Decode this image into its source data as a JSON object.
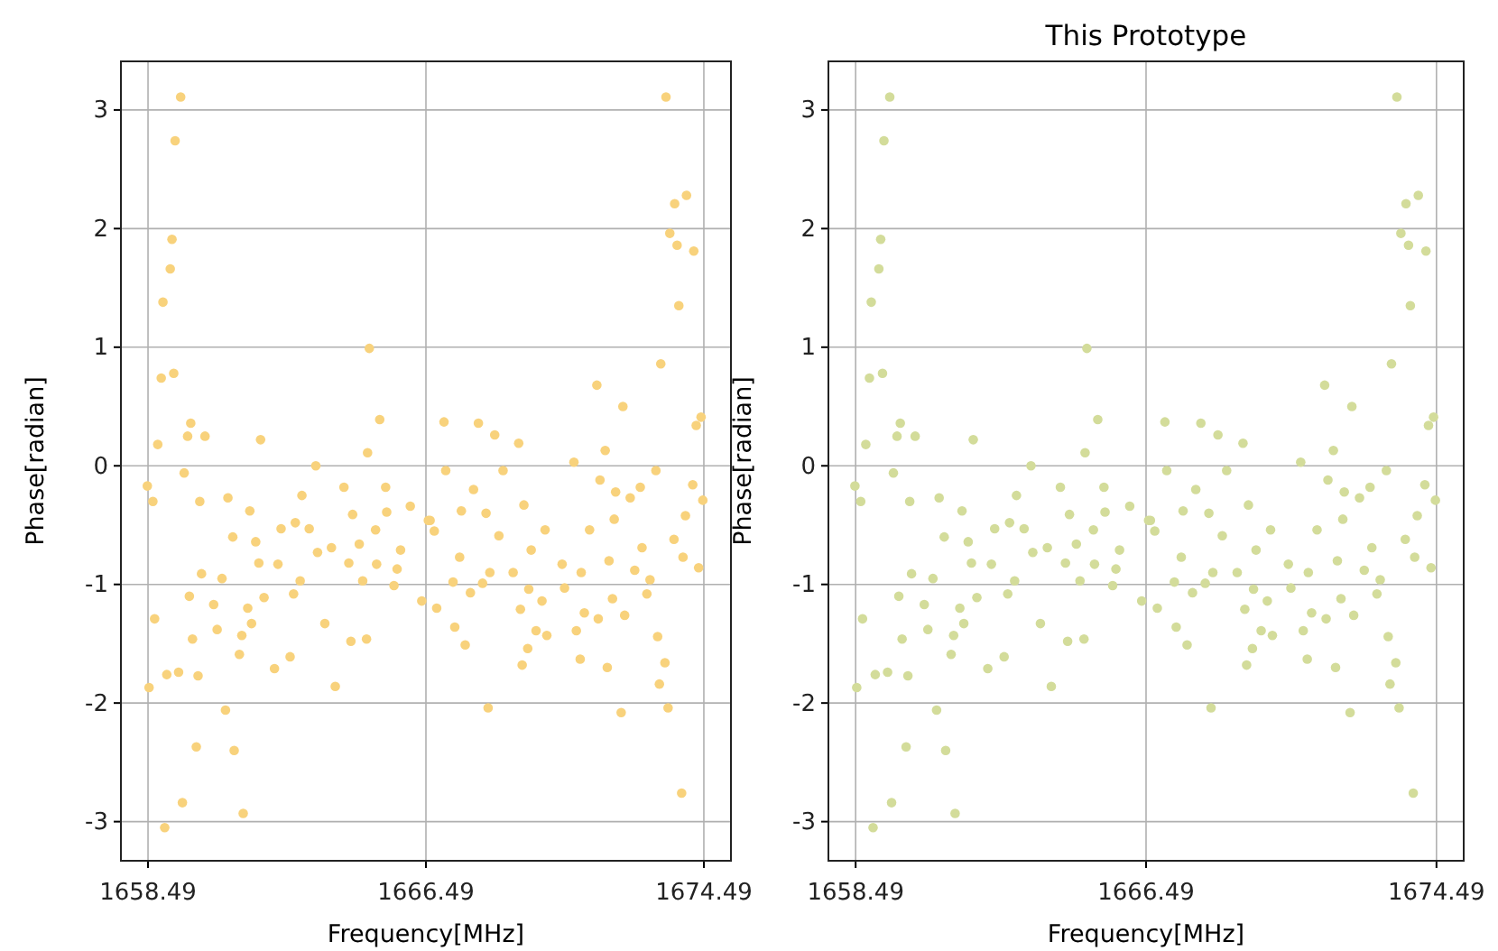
{
  "chart_data": [
    {
      "type": "scatter",
      "xlabel": "Frequency[MHz]",
      "ylabel": "Phase[radian]",
      "xlim": [
        1657.71,
        1675.27
      ],
      "ylim": [
        -3.33,
        3.41
      ],
      "xticks": [
        1658.49,
        1666.49,
        1674.49
      ],
      "yticks": [
        -3,
        -2,
        -1,
        0,
        1,
        2,
        3
      ],
      "grid": true,
      "marker": "circle",
      "series": [
        {
          "color": "#f8d27c",
          "x": [
            1659.43,
            1659.27,
            1659.18,
            1659.13,
            1658.92,
            1658.87,
            1659.23,
            1658.77,
            1659.72,
            1659.63,
            1660.13,
            1661.73,
            1659.53,
            1658.47,
            1658.63,
            1659.98,
            1660.79,
            1661.42,
            1663.32,
            1662.92,
            1664.13,
            1664.38,
            1660.93,
            1661.59,
            1662.32,
            1662.73,
            1663.13,
            1663.37,
            1663.77,
            1664.57,
            1661.68,
            1662.23,
            1660.03,
            1660.62,
            1662.87,
            1664.27,
            1664.67,
            1659.68,
            1660.38,
            1661.83,
            1662.68,
            1661.36,
            1658.68,
            1661.47,
            1663.58,
            1659.77,
            1660.48,
            1661.19,
            1664.33,
            1664.78,
            1661.12,
            1662.13,
            1662.58,
            1658.52,
            1659.03,
            1659.37,
            1659.93,
            1663.88,
            1660.72,
            1659.88,
            1660.97,
            1659.48,
            1658.97,
            1661.23,
            1664.86,
            1665.16,
            1664.81,
            1665.33,
            1666.04,
            1665.36,
            1665.04,
            1665.76,
            1665.07,
            1665.66,
            1665.57,
            1666.37,
            1666.56,
            1673.4,
            1673.65,
            1673.99,
            1673.51,
            1673.72,
            1674.2,
            1673.77,
            1673.25,
            1671.41,
            1672.16,
            1674.41,
            1674.27,
            1667.01,
            1668.0,
            1668.47,
            1669.16,
            1671.65,
            1670.75,
            1667.06,
            1668.71,
            1673.11,
            1671.5,
            1671.95,
            1672.66,
            1674.17,
            1674.46,
            1667.86,
            1669.31,
            1672.37,
            1666.61,
            1667.51,
            1668.22,
            1666.73,
            1668.59,
            1669.92,
            1671.2,
            1671.91,
            1673.96,
            1672.71,
            1673.63,
            1669.52,
            1670.41,
            1671.76,
            1673.89,
            1674.34,
            1667.46,
            1668.33,
            1669.0,
            1670.96,
            1672.5,
            1672.94,
            1667.27,
            1668.12,
            1669.45,
            1670.48,
            1667.77,
            1669.83,
            1671.86,
            1672.85,
            1666.8,
            1669.21,
            1671.05,
            1671.45,
            1672.21,
            1667.32,
            1669.66,
            1670.82,
            1669.97,
            1673.16,
            1667.62,
            1669.42,
            1670.93,
            1669.26,
            1671.71,
            1673.37,
            1673.21,
            1668.28,
            1673.46,
            1672.11,
            1673.85
          ],
          "values": [
            3.11,
            2.74,
            1.91,
            1.66,
            1.38,
            0.74,
            0.78,
            0.18,
            0.36,
            0.25,
            0.25,
            0.22,
            -0.06,
            -0.17,
            -0.3,
            -0.3,
            -0.27,
            -0.38,
            0.0,
            -0.25,
            -0.18,
            -0.41,
            -0.6,
            -0.64,
            -0.53,
            -0.48,
            -0.53,
            -0.73,
            -0.69,
            -0.66,
            -0.82,
            -0.83,
            -0.91,
            -0.95,
            -0.97,
            -0.82,
            -0.97,
            -1.1,
            -1.17,
            -1.11,
            -1.08,
            -1.2,
            -1.29,
            -1.33,
            -1.33,
            -1.46,
            -1.38,
            -1.43,
            -1.48,
            -1.46,
            -1.59,
            -1.71,
            -1.61,
            -1.87,
            -1.76,
            -1.74,
            -1.77,
            -1.86,
            -2.06,
            -2.37,
            -2.4,
            -2.84,
            -3.05,
            -2.93,
            0.99,
            0.39,
            0.11,
            -0.18,
            -0.34,
            -0.39,
            -0.54,
            -0.71,
            -0.83,
            -0.87,
            -1.01,
            -1.14,
            -0.46,
            3.11,
            2.21,
            2.28,
            1.96,
            1.86,
            1.81,
            1.35,
            0.86,
            0.68,
            0.5,
            0.41,
            0.34,
            0.37,
            0.36,
            0.26,
            0.19,
            0.13,
            0.03,
            -0.04,
            -0.04,
            -0.04,
            -0.12,
            -0.22,
            -0.18,
            -0.16,
            -0.29,
            -0.2,
            -0.33,
            -0.27,
            -0.46,
            -0.38,
            -0.4,
            -0.55,
            -0.59,
            -0.54,
            -0.54,
            -0.45,
            -0.42,
            -0.69,
            -0.62,
            -0.71,
            -0.83,
            -0.8,
            -0.77,
            -0.86,
            -0.77,
            -0.9,
            -0.9,
            -0.9,
            -0.88,
            -0.96,
            -0.98,
            -0.99,
            -1.04,
            -1.03,
            -1.07,
            -1.14,
            -1.12,
            -1.08,
            -1.2,
            -1.21,
            -1.24,
            -1.29,
            -1.26,
            -1.36,
            -1.39,
            -1.39,
            -1.43,
            -1.44,
            -1.51,
            -1.54,
            -1.63,
            -1.68,
            -1.7,
            -1.66,
            -1.84,
            -2.04,
            -2.04,
            -2.08,
            -2.76
          ]
        }
      ]
    },
    {
      "type": "scatter",
      "title": "This Prototype",
      "xlabel": "Frequency[MHz]",
      "ylabel": "Phase[radian]",
      "xlim": [
        1657.74,
        1675.24
      ],
      "ylim": [
        -3.33,
        3.41
      ],
      "xticks": [
        1658.49,
        1666.49,
        1674.49
      ],
      "yticks": [
        -3,
        -2,
        -1,
        0,
        1,
        2,
        3
      ],
      "grid": true,
      "marker": "circle",
      "series": [
        {
          "color": "#d3dc9a",
          "x": [
            1659.43,
            1659.27,
            1659.18,
            1659.13,
            1658.92,
            1658.87,
            1659.23,
            1658.77,
            1659.72,
            1659.63,
            1660.13,
            1661.73,
            1659.53,
            1658.47,
            1658.63,
            1659.98,
            1660.79,
            1661.42,
            1663.32,
            1662.92,
            1664.13,
            1664.38,
            1660.93,
            1661.59,
            1662.32,
            1662.73,
            1663.13,
            1663.37,
            1663.77,
            1664.57,
            1661.68,
            1662.23,
            1660.03,
            1660.62,
            1662.87,
            1664.27,
            1664.67,
            1659.68,
            1660.38,
            1661.83,
            1662.68,
            1661.36,
            1658.68,
            1661.47,
            1663.58,
            1659.77,
            1660.48,
            1661.19,
            1664.33,
            1664.78,
            1661.12,
            1662.13,
            1662.58,
            1658.52,
            1659.03,
            1659.37,
            1659.93,
            1663.88,
            1660.72,
            1659.88,
            1660.97,
            1659.48,
            1658.97,
            1661.23,
            1664.86,
            1665.16,
            1664.81,
            1665.33,
            1666.04,
            1665.36,
            1665.04,
            1665.76,
            1665.07,
            1665.66,
            1665.57,
            1666.37,
            1666.56,
            1673.4,
            1673.65,
            1673.99,
            1673.51,
            1673.72,
            1674.2,
            1673.77,
            1673.25,
            1671.41,
            1672.16,
            1674.41,
            1674.27,
            1667.01,
            1668.0,
            1668.47,
            1669.16,
            1671.65,
            1670.75,
            1667.06,
            1668.71,
            1673.11,
            1671.5,
            1671.95,
            1672.66,
            1674.17,
            1674.46,
            1667.86,
            1669.31,
            1672.37,
            1666.61,
            1667.51,
            1668.22,
            1666.73,
            1668.59,
            1669.92,
            1671.2,
            1671.91,
            1673.96,
            1672.71,
            1673.63,
            1669.52,
            1670.41,
            1671.76,
            1673.89,
            1674.34,
            1667.46,
            1668.33,
            1669.0,
            1670.96,
            1672.5,
            1672.94,
            1667.27,
            1668.12,
            1669.45,
            1670.48,
            1667.77,
            1669.83,
            1671.86,
            1672.85,
            1666.8,
            1669.21,
            1671.05,
            1671.45,
            1672.21,
            1667.32,
            1669.66,
            1670.82,
            1669.97,
            1673.16,
            1667.62,
            1669.42,
            1670.93,
            1669.26,
            1671.71,
            1673.37,
            1673.21,
            1668.28,
            1673.46,
            1672.11,
            1673.85
          ],
          "values": [
            3.11,
            2.74,
            1.91,
            1.66,
            1.38,
            0.74,
            0.78,
            0.18,
            0.36,
            0.25,
            0.25,
            0.22,
            -0.06,
            -0.17,
            -0.3,
            -0.3,
            -0.27,
            -0.38,
            0.0,
            -0.25,
            -0.18,
            -0.41,
            -0.6,
            -0.64,
            -0.53,
            -0.48,
            -0.53,
            -0.73,
            -0.69,
            -0.66,
            -0.82,
            -0.83,
            -0.91,
            -0.95,
            -0.97,
            -0.82,
            -0.97,
            -1.1,
            -1.17,
            -1.11,
            -1.08,
            -1.2,
            -1.29,
            -1.33,
            -1.33,
            -1.46,
            -1.38,
            -1.43,
            -1.48,
            -1.46,
            -1.59,
            -1.71,
            -1.61,
            -1.87,
            -1.76,
            -1.74,
            -1.77,
            -1.86,
            -2.06,
            -2.37,
            -2.4,
            -2.84,
            -3.05,
            -2.93,
            0.99,
            0.39,
            0.11,
            -0.18,
            -0.34,
            -0.39,
            -0.54,
            -0.71,
            -0.83,
            -0.87,
            -1.01,
            -1.14,
            -0.46,
            3.11,
            2.21,
            2.28,
            1.96,
            1.86,
            1.81,
            1.35,
            0.86,
            0.68,
            0.5,
            0.41,
            0.34,
            0.37,
            0.36,
            0.26,
            0.19,
            0.13,
            0.03,
            -0.04,
            -0.04,
            -0.04,
            -0.12,
            -0.22,
            -0.18,
            -0.16,
            -0.29,
            -0.2,
            -0.33,
            -0.27,
            -0.46,
            -0.38,
            -0.4,
            -0.55,
            -0.59,
            -0.54,
            -0.54,
            -0.45,
            -0.42,
            -0.69,
            -0.62,
            -0.71,
            -0.83,
            -0.8,
            -0.77,
            -0.86,
            -0.77,
            -0.9,
            -0.9,
            -0.9,
            -0.88,
            -0.96,
            -0.98,
            -0.99,
            -1.04,
            -1.03,
            -1.07,
            -1.14,
            -1.12,
            -1.08,
            -1.2,
            -1.21,
            -1.24,
            -1.29,
            -1.26,
            -1.36,
            -1.39,
            -1.39,
            -1.43,
            -1.44,
            -1.51,
            -1.54,
            -1.63,
            -1.68,
            -1.7,
            -1.66,
            -1.84,
            -2.04,
            -2.04,
            -2.08,
            -2.76
          ]
        }
      ]
    }
  ]
}
